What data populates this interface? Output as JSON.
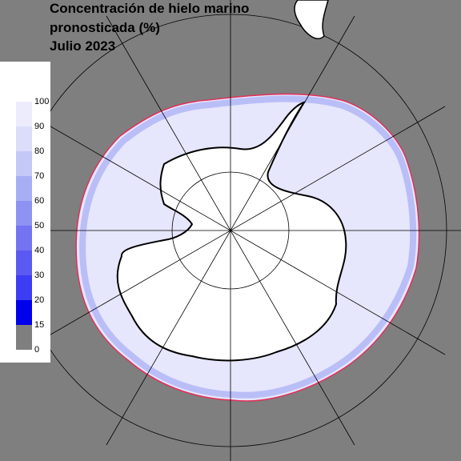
{
  "title": [
    "Concentración de hielo marino",
    "pronosticada (%)",
    "Julio 2023"
  ],
  "legend": {
    "ticks": [
      100,
      90,
      80,
      70,
      60,
      50,
      40,
      30,
      20,
      15,
      0
    ],
    "colors": [
      "#ffffff",
      "#ececfd",
      "#dcdcfb",
      "#c4c8f6",
      "#a8aef4",
      "#8e92f3",
      "#7474f2",
      "#5a5af3",
      "#3d3df3",
      "#0000ea",
      "#7f7f7f"
    ]
  }
}
